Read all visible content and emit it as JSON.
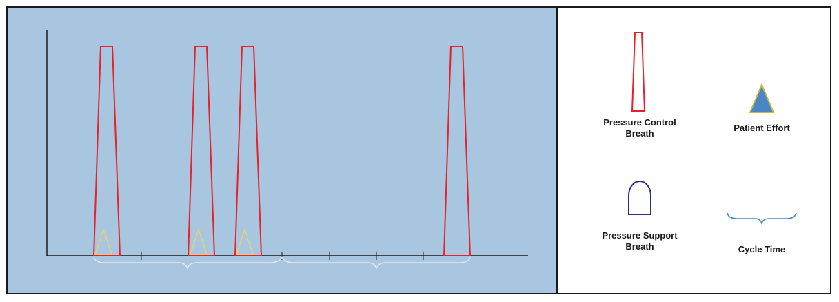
{
  "diagram": {
    "breaths": [
      {
        "type": "pressure-control",
        "patient_triggered": true
      },
      {
        "type": "pressure-control",
        "patient_triggered": true
      },
      {
        "type": "pressure-control",
        "patient_triggered": true
      },
      {
        "type": "pressure-control",
        "patient_triggered": false
      }
    ],
    "cycle_time_braces": 2,
    "colors": {
      "panel_background": "#a8c6df",
      "pressure_control": "#e8202a",
      "patient_effort_outline": "#e8d070",
      "patient_effort_fill": "#4a86c5",
      "pressure_support": "#2b2f8c",
      "cycle_time": "#4a86c5",
      "axis": "#1a1a1a"
    }
  },
  "legend": {
    "pressure_control": {
      "label": "Pressure Control\nBreath",
      "icon": "tall-trapezoid-icon"
    },
    "patient_effort": {
      "label": "Patient Effort",
      "icon": "triangle-icon"
    },
    "pressure_support": {
      "label": "Pressure Support\nBreath",
      "icon": "dome-icon"
    },
    "cycle_time": {
      "label": "Cycle Time",
      "icon": "curly-brace-icon"
    }
  }
}
